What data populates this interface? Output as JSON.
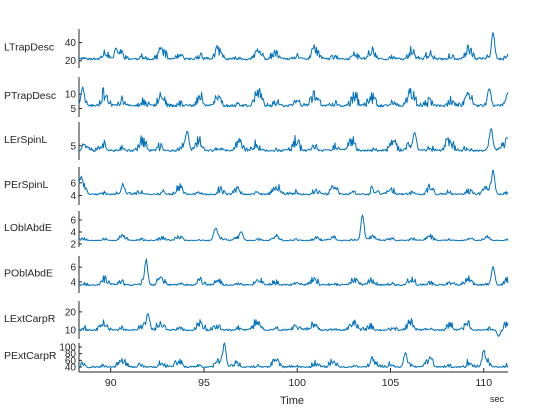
{
  "chart_data": {
    "type": "line",
    "layout": "stacked",
    "xlabel": "Time",
    "xunit": "sec",
    "xlim": [
      88.3,
      111.3
    ],
    "xticks": [
      90,
      95,
      100,
      105,
      110
    ],
    "line_color": "#0072BD",
    "axis_color": "#262626",
    "panels": [
      {
        "label": "LTrapDesc",
        "ylim": [
          12,
          55
        ],
        "yticks": [
          20,
          40
        ],
        "baseline": 22,
        "noise_amp": 12,
        "seed": 11,
        "events": [
          {
            "t": 110.5,
            "value": 54
          },
          {
            "t": 90.3,
            "value": 33
          }
        ]
      },
      {
        "label": "PTrapDesc",
        "ylim": [
          2,
          16
        ],
        "yticks": [
          5,
          10
        ],
        "baseline": 6,
        "noise_amp": 5,
        "seed": 23,
        "events": [
          {
            "t": 88.5,
            "value": 13
          },
          {
            "t": 110.3,
            "value": 13
          }
        ]
      },
      {
        "label": "LErSpinL",
        "ylim": [
          2,
          10
        ],
        "yticks": [
          5
        ],
        "baseline": 4,
        "noise_amp": 2.5,
        "seed": 37,
        "events": [
          {
            "t": 94.1,
            "value": 8.5
          },
          {
            "t": 106.3,
            "value": 8.4
          },
          {
            "t": 110.4,
            "value": 8.8
          }
        ]
      },
      {
        "label": "PErSpinL",
        "ylim": [
          2.5,
          8.5
        ],
        "yticks": [
          4,
          6
        ],
        "baseline": 4.2,
        "noise_amp": 1.3,
        "seed": 41,
        "events": [
          {
            "t": 110.5,
            "value": 8.2
          },
          {
            "t": 88.4,
            "value": 6.8
          }
        ]
      },
      {
        "label": "LOblAbdE",
        "ylim": [
          1.5,
          7.5
        ],
        "yticks": [
          2,
          4,
          6
        ],
        "baseline": 2.6,
        "noise_amp": 0.8,
        "seed": 53,
        "events": [
          {
            "t": 103.5,
            "value": 7.3
          },
          {
            "t": 95.6,
            "value": 4.6
          },
          {
            "t": 97.0,
            "value": 4.2
          }
        ]
      },
      {
        "label": "POblAbdE",
        "ylim": [
          2.5,
          7.5
        ],
        "yticks": [
          4,
          6
        ],
        "baseline": 3.6,
        "noise_amp": 1.0,
        "seed": 67,
        "events": [
          {
            "t": 91.9,
            "value": 7.2
          },
          {
            "t": 110.5,
            "value": 6.4
          }
        ]
      },
      {
        "label": "LExtCarpR",
        "ylim": [
          5,
          26
        ],
        "yticks": [
          10,
          20
        ],
        "baseline": 10,
        "noise_amp": 5,
        "seed": 79,
        "events": [
          {
            "t": 92.0,
            "value": 20
          },
          {
            "t": 110.8,
            "value": 6
          }
        ]
      },
      {
        "label": "PExtCarpR",
        "ylim": [
          25,
          112
        ],
        "yticks": [
          40,
          60,
          80,
          100
        ],
        "baseline": 40,
        "noise_amp": 24,
        "seed": 97,
        "events": [
          {
            "t": 96.1,
            "value": 108
          },
          {
            "t": 105.8,
            "value": 88
          },
          {
            "t": 110.0,
            "value": 85
          }
        ]
      }
    ]
  }
}
